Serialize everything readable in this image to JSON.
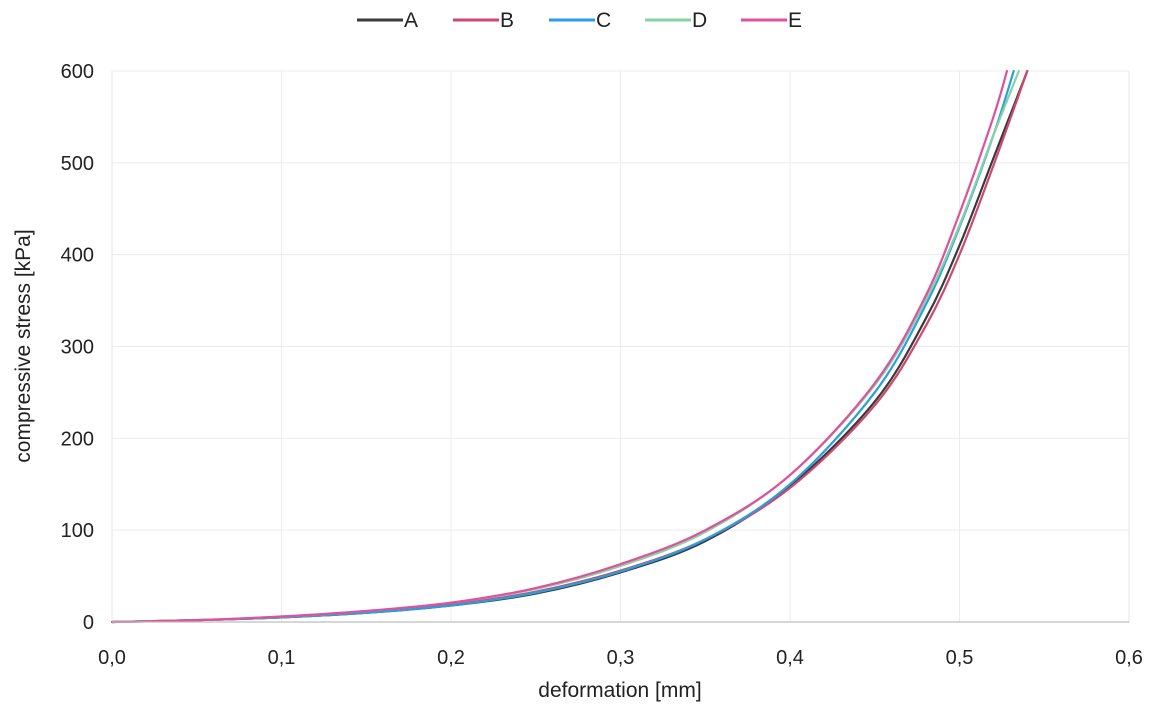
{
  "chart_data": {
    "type": "line",
    "title": "",
    "xlabel": "deformation [mm]",
    "ylabel": "compressive stress [kPa]",
    "xlim": [
      0,
      0.6
    ],
    "ylim": [
      0,
      600
    ],
    "x_ticks": [
      "0,0",
      "0,1",
      "0,2",
      "0,3",
      "0,4",
      "0,5",
      "0,6"
    ],
    "y_ticks": [
      "0",
      "100",
      "200",
      "300",
      "400",
      "500",
      "600"
    ],
    "grid": true,
    "legend_position": "top-center",
    "series": [
      {
        "name": "A",
        "color": "#3a3a3a",
        "points": [
          [
            0,
            0
          ],
          [
            0.05,
            2
          ],
          [
            0.1,
            5
          ],
          [
            0.15,
            10
          ],
          [
            0.2,
            18
          ],
          [
            0.25,
            31
          ],
          [
            0.3,
            54
          ],
          [
            0.35,
            88
          ],
          [
            0.4,
            148
          ],
          [
            0.45,
            240
          ],
          [
            0.48,
            330
          ],
          [
            0.5,
            410
          ],
          [
            0.52,
            505
          ],
          [
            0.54,
            600
          ]
        ]
      },
      {
        "name": "B",
        "color": "#cc4a6e",
        "points": [
          [
            0,
            0
          ],
          [
            0.05,
            2
          ],
          [
            0.1,
            5
          ],
          [
            0.15,
            10
          ],
          [
            0.2,
            19
          ],
          [
            0.25,
            33
          ],
          [
            0.3,
            56
          ],
          [
            0.35,
            90
          ],
          [
            0.4,
            146
          ],
          [
            0.45,
            236
          ],
          [
            0.48,
            322
          ],
          [
            0.5,
            400
          ],
          [
            0.52,
            497
          ],
          [
            0.54,
            600
          ]
        ]
      },
      {
        "name": "C",
        "color": "#2a9fe0",
        "points": [
          [
            0,
            0
          ],
          [
            0.05,
            2
          ],
          [
            0.1,
            5
          ],
          [
            0.15,
            10
          ],
          [
            0.2,
            18
          ],
          [
            0.25,
            32
          ],
          [
            0.3,
            55
          ],
          [
            0.35,
            90
          ],
          [
            0.4,
            150
          ],
          [
            0.45,
            250
          ],
          [
            0.48,
            345
          ],
          [
            0.5,
            430
          ],
          [
            0.52,
            530
          ],
          [
            0.532,
            600
          ]
        ]
      },
      {
        "name": "D",
        "color": "#86d2a6",
        "points": [
          [
            0,
            0
          ],
          [
            0.05,
            2
          ],
          [
            0.1,
            6
          ],
          [
            0.15,
            12
          ],
          [
            0.2,
            21
          ],
          [
            0.25,
            36
          ],
          [
            0.3,
            61
          ],
          [
            0.35,
            98
          ],
          [
            0.4,
            160
          ],
          [
            0.45,
            258
          ],
          [
            0.48,
            350
          ],
          [
            0.5,
            432
          ],
          [
            0.52,
            530
          ],
          [
            0.535,
            600
          ]
        ]
      },
      {
        "name": "E",
        "color": "#e0509c",
        "points": [
          [
            0,
            0
          ],
          [
            0.05,
            2
          ],
          [
            0.1,
            6
          ],
          [
            0.15,
            12
          ],
          [
            0.2,
            21
          ],
          [
            0.25,
            37
          ],
          [
            0.3,
            63
          ],
          [
            0.35,
            100
          ],
          [
            0.4,
            160
          ],
          [
            0.45,
            260
          ],
          [
            0.48,
            355
          ],
          [
            0.5,
            445
          ],
          [
            0.52,
            550
          ],
          [
            0.528,
            600
          ]
        ]
      }
    ]
  }
}
